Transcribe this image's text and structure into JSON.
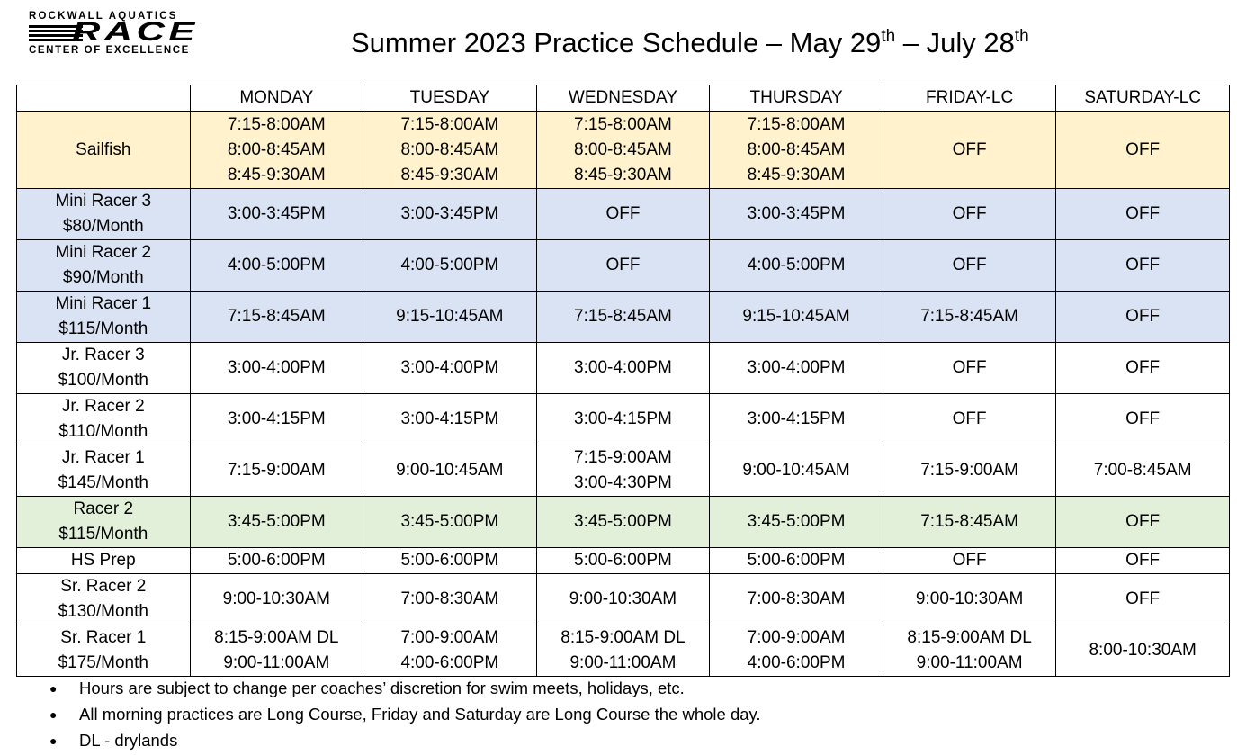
{
  "logo": {
    "line1": "ROCKWALL AQUATICS",
    "line2": "RACE",
    "line3": "CENTER OF EXCELLENCE"
  },
  "title": {
    "text": "Summer 2023 Practice Schedule – May 29",
    "sup1": "th",
    "mid": " – July 28",
    "sup2": "th"
  },
  "colors": {
    "yellow": "#fff2cc",
    "blue": "#dae3f3",
    "green": "#e2f0d9",
    "white": "#ffffff"
  },
  "headers": [
    "",
    "MONDAY",
    "TUESDAY",
    "WEDNESDAY",
    "THURSDAY",
    "FRIDAY-LC",
    "SATURDAY-LC"
  ],
  "rows": [
    {
      "color": "yellow",
      "label": [
        "Sailfish"
      ],
      "cells": [
        [
          "7:15-8:00AM",
          "8:00-8:45AM",
          "8:45-9:30AM"
        ],
        [
          "7:15-8:00AM",
          "8:00-8:45AM",
          "8:45-9:30AM"
        ],
        [
          "7:15-8:00AM",
          "8:00-8:45AM",
          "8:45-9:30AM"
        ],
        [
          "7:15-8:00AM",
          "8:00-8:45AM",
          "8:45-9:30AM"
        ],
        [
          "OFF"
        ],
        [
          "OFF"
        ]
      ]
    },
    {
      "color": "blue",
      "label": [
        "Mini Racer 3",
        "$80/Month"
      ],
      "cells": [
        [
          "3:00-3:45PM"
        ],
        [
          "3:00-3:45PM"
        ],
        [
          "OFF"
        ],
        [
          "3:00-3:45PM"
        ],
        [
          "OFF"
        ],
        [
          "OFF"
        ]
      ]
    },
    {
      "color": "blue",
      "label": [
        "Mini Racer 2",
        "$90/Month"
      ],
      "cells": [
        [
          "4:00-5:00PM"
        ],
        [
          "4:00-5:00PM"
        ],
        [
          "OFF"
        ],
        [
          "4:00-5:00PM"
        ],
        [
          "OFF"
        ],
        [
          "OFF"
        ]
      ]
    },
    {
      "color": "blue",
      "label": [
        "Mini Racer 1",
        "$115/Month"
      ],
      "cells": [
        [
          "7:15-8:45AM"
        ],
        [
          "9:15-10:45AM"
        ],
        [
          "7:15-8:45AM"
        ],
        [
          "9:15-10:45AM"
        ],
        [
          "7:15-8:45AM"
        ],
        [
          "OFF"
        ]
      ]
    },
    {
      "color": "white",
      "label": [
        "Jr. Racer 3",
        "$100/Month"
      ],
      "cells": [
        [
          "3:00-4:00PM"
        ],
        [
          "3:00-4:00PM"
        ],
        [
          "3:00-4:00PM"
        ],
        [
          "3:00-4:00PM"
        ],
        [
          "OFF"
        ],
        [
          "OFF"
        ]
      ]
    },
    {
      "color": "white",
      "label": [
        "Jr. Racer 2",
        "$110/Month"
      ],
      "cells": [
        [
          "3:00-4:15PM"
        ],
        [
          "3:00-4:15PM"
        ],
        [
          "3:00-4:15PM"
        ],
        [
          "3:00-4:15PM"
        ],
        [
          "OFF"
        ],
        [
          "OFF"
        ]
      ]
    },
    {
      "color": "white",
      "label": [
        "Jr. Racer 1",
        "$145/Month"
      ],
      "cells": [
        [
          "7:15-9:00AM"
        ],
        [
          "9:00-10:45AM"
        ],
        [
          "7:15-9:00AM",
          "3:00-4:30PM"
        ],
        [
          "9:00-10:45AM"
        ],
        [
          "7:15-9:00AM"
        ],
        [
          "7:00-8:45AM"
        ]
      ]
    },
    {
      "color": "green",
      "label": [
        "Racer 2",
        "$115/Month"
      ],
      "cells": [
        [
          "3:45-5:00PM"
        ],
        [
          "3:45-5:00PM"
        ],
        [
          "3:45-5:00PM"
        ],
        [
          "3:45-5:00PM"
        ],
        [
          "7:15-8:45AM"
        ],
        [
          "OFF"
        ]
      ]
    },
    {
      "color": "white",
      "label": [
        "HS Prep"
      ],
      "cells": [
        [
          "5:00-6:00PM"
        ],
        [
          "5:00-6:00PM"
        ],
        [
          "5:00-6:00PM"
        ],
        [
          "5:00-6:00PM"
        ],
        [
          "OFF"
        ],
        [
          "OFF"
        ]
      ]
    },
    {
      "color": "white",
      "label": [
        "Sr. Racer 2",
        "$130/Month"
      ],
      "cells": [
        [
          "9:00-10:30AM"
        ],
        [
          "7:00-8:30AM"
        ],
        [
          "9:00-10:30AM"
        ],
        [
          "7:00-8:30AM"
        ],
        [
          "9:00-10:30AM"
        ],
        [
          "OFF"
        ]
      ]
    },
    {
      "color": "white",
      "label": [
        "Sr. Racer 1",
        "$175/Month"
      ],
      "cells": [
        [
          "8:15-9:00AM DL",
          "9:00-11:00AM"
        ],
        [
          "7:00-9:00AM",
          "4:00-6:00PM"
        ],
        [
          "8:15-9:00AM DL",
          "9:00-11:00AM"
        ],
        [
          "7:00-9:00AM",
          "4:00-6:00PM"
        ],
        [
          "8:15-9:00AM DL",
          "9:00-11:00AM"
        ],
        [
          "8:00-10:30AM"
        ]
      ]
    }
  ],
  "notes": [
    "Hours are subject to change per coaches’ discretion for swim meets, holidays, etc.",
    "All morning practices are Long Course, Friday and Saturday are Long Course the whole day.",
    "DL - drylands"
  ]
}
